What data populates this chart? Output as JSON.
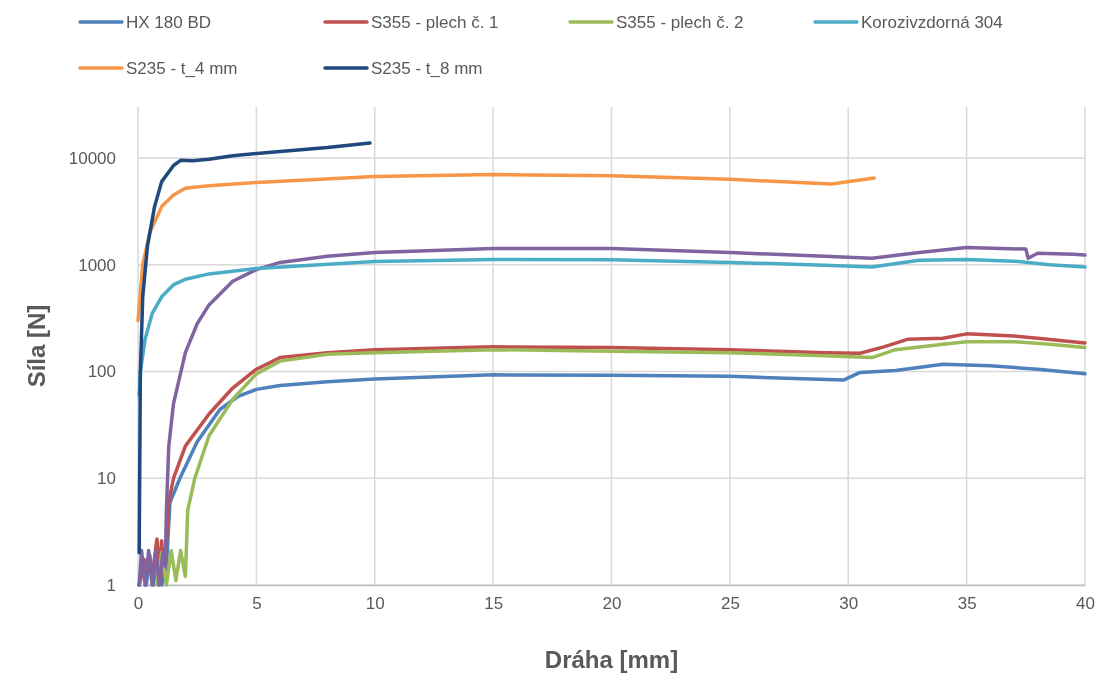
{
  "chart_data": {
    "type": "line",
    "xlabel": "Dráha [mm]",
    "ylabel": "Síla [N]",
    "log": "y",
    "grid": true,
    "legend": "top",
    "xlim": [
      0,
      40
    ],
    "xticks": [
      0,
      5,
      10,
      15,
      20,
      25,
      30,
      35,
      40
    ],
    "ylim": [
      1,
      30000
    ],
    "yticks": [
      1,
      10,
      100,
      1000,
      10000
    ],
    "series": [
      {
        "name": "HX 180 BD",
        "color": "#4f81bd",
        "x": [
          0.05,
          0.2,
          0.35,
          0.5,
          0.65,
          0.8,
          1.0,
          1.2,
          1.35,
          1.77,
          2.5,
          3.46,
          4.2,
          5.0,
          6,
          8,
          10,
          15,
          20,
          25,
          29.8,
          30.5,
          32,
          34,
          36,
          38,
          40
        ],
        "values": [
          1,
          1.8,
          1,
          1.9,
          1,
          1.8,
          1,
          1.5,
          5.9,
          10,
          22,
          44,
          58,
          68,
          74,
          80,
          85,
          93,
          92,
          90,
          83,
          98,
          102,
          117,
          113,
          105,
          95
        ]
      },
      {
        "name": "S355 - plech č. 1",
        "color": "#c0504d",
        "x": [
          0.05,
          0.3,
          0.6,
          0.8,
          0.9,
          1.0,
          1.1,
          1.2,
          1.3,
          1.5,
          2,
          3,
          4,
          5,
          6,
          8,
          10,
          15,
          20,
          25,
          29,
          30.5,
          31.5,
          32.5,
          34,
          35,
          37,
          38,
          40
        ],
        "values": [
          1,
          1.7,
          1.2,
          2.7,
          1.3,
          2.6,
          1.2,
          2.5,
          6,
          10,
          20,
          40,
          70,
          105,
          135,
          150,
          160,
          170,
          168,
          160,
          150,
          148,
          170,
          200,
          205,
          225,
          215,
          205,
          185
        ]
      },
      {
        "name": "S355 - plech č. 2",
        "color": "#9bbb59",
        "x": [
          0.8,
          1.0,
          1.2,
          1.4,
          1.6,
          1.8,
          2.0,
          2.1,
          2.4,
          3,
          4,
          5,
          6,
          8,
          10,
          15,
          20,
          25,
          29,
          31,
          32,
          34,
          35,
          37,
          38.5,
          40
        ],
        "values": [
          1,
          2,
          1,
          2.1,
          1.1,
          2.1,
          1.2,
          5,
          10,
          25,
          55,
          95,
          125,
          145,
          150,
          160,
          155,
          150,
          140,
          135,
          160,
          180,
          190,
          190,
          180,
          168
        ]
      },
      {
        "color": "#8064a2",
        "x": [
          0.05,
          0.15,
          0.3,
          0.45,
          0.6,
          0.75,
          0.9,
          1.05,
          1.15,
          1.2,
          1.3,
          1.5,
          2,
          2.5,
          3,
          4,
          5,
          6,
          8,
          10,
          15,
          20,
          25,
          29,
          31,
          33,
          35,
          37.5,
          37.6,
          38,
          39.5,
          40
        ],
        "values": [
          1,
          2.1,
          1,
          2.1,
          1,
          2.1,
          1,
          2,
          1.5,
          5,
          20,
          50,
          150,
          280,
          420,
          700,
          900,
          1050,
          1200,
          1300,
          1420,
          1420,
          1300,
          1200,
          1150,
          1300,
          1450,
          1400,
          1150,
          1280,
          1250,
          1230
        ]
      },
      {
        "name": "Korozivzdorná 304",
        "color": "#4bacc6",
        "x": [
          0.05,
          0.1,
          0.3,
          0.6,
          1,
          1.5,
          2,
          3,
          5,
          10,
          15,
          20,
          25,
          29,
          31,
          33,
          35,
          37,
          38.5,
          40
        ],
        "values": [
          60,
          100,
          200,
          350,
          500,
          650,
          730,
          820,
          920,
          1070,
          1120,
          1110,
          1050,
          990,
          950,
          1100,
          1120,
          1080,
          1000,
          950
        ]
      },
      {
        "name": "S235 - t_4 mm",
        "color": "#f79646",
        "x": [
          0,
          0.2,
          0.5,
          1,
          1.5,
          2,
          3,
          5,
          10,
          15,
          20,
          25,
          29.3,
          31.1
        ],
        "values": [
          300,
          1000,
          2000,
          3500,
          4500,
          5200,
          5500,
          5900,
          6700,
          7000,
          6800,
          6300,
          5700,
          6500
        ]
      },
      {
        "name": "S235 - t_8 mm",
        "color": "#1f497d",
        "x": [
          0.05,
          0.1,
          0.2,
          0.4,
          0.7,
          1,
          1.5,
          1.8,
          2.3,
          3,
          4,
          6,
          8,
          9.8
        ],
        "values": [
          2,
          100,
          500,
          1500,
          3500,
          6000,
          8500,
          9500,
          9400,
          9700,
          10500,
          11500,
          12500,
          13800
        ]
      }
    ]
  }
}
